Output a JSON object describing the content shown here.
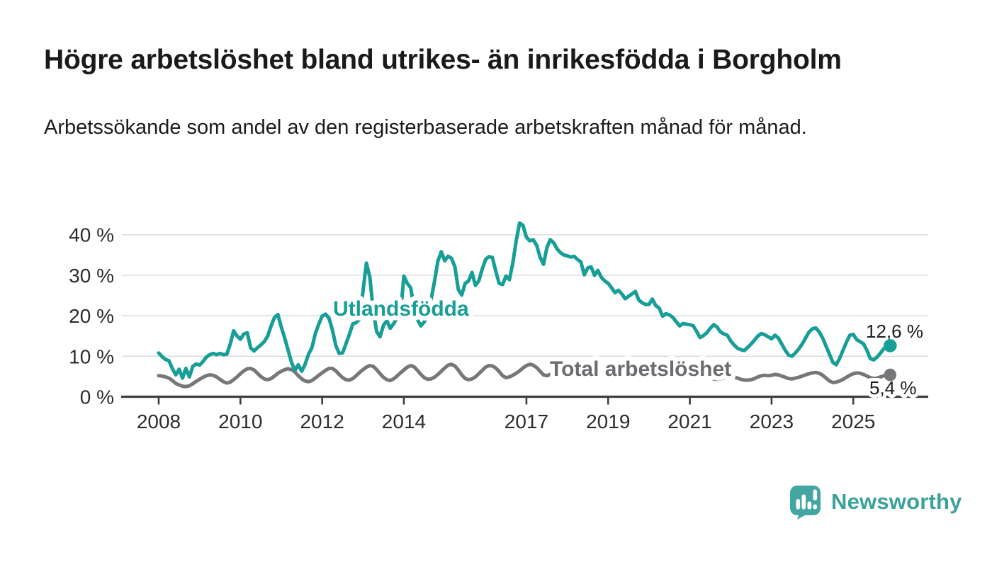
{
  "header": {
    "title": "Högre arbetslöshet bland utrikes- än inrikesfödda i Borgholm",
    "subtitle": "Arbetssökande som andel av den registerbaserade arbetskraften månad för månad."
  },
  "footer": {
    "brand": "Newsworthy"
  },
  "colors": {
    "foreign_born_line": "#169e97",
    "total_line": "#77777b",
    "total_label": "#6b6b70",
    "axis": "#3f3f3f",
    "grid": "#d9d9d9",
    "tick_text": "#2d2d2d",
    "end_label_text": "#1d1d1d",
    "brand_teal": "#3ba19b",
    "background": "#ffffff"
  },
  "chart_data": {
    "type": "line",
    "title": "Högre arbetslöshet bland utrikes- än inrikesfödda i Borgholm",
    "subtitle": "Arbetssökande som andel av den registerbaserade arbetskraften månad för månad.",
    "unit": "%",
    "x_start": "2008-01",
    "x_end": "2025-11",
    "x_tick_years": [
      2008,
      2010,
      2012,
      2014,
      2017,
      2019,
      2021,
      2023,
      2025
    ],
    "x_tick_labels": [
      "2008",
      "2010",
      "2012",
      "2014",
      "2017",
      "2019",
      "2021",
      "2023",
      "2025"
    ],
    "y_ticks": [
      {
        "value": 0,
        "label": "0 %"
      },
      {
        "value": 10,
        "label": "10 %"
      },
      {
        "value": 20,
        "label": "20 %"
      },
      {
        "value": 30,
        "label": "30 %"
      },
      {
        "value": 40,
        "label": "40 %"
      }
    ],
    "ylim": [
      0,
      44
    ],
    "grid": true,
    "legend_position": "inline-labels",
    "series": [
      {
        "name": "Utlandsfödda",
        "color": "#169e97",
        "end_label": "12,6 %",
        "end_value": 12.6,
        "values": [
          10.8,
          9.9,
          9.2,
          8.9,
          7.0,
          5.4,
          6.8,
          4.6,
          7.0,
          4.9,
          7.5,
          8.1,
          7.8,
          8.7,
          9.8,
          10.4,
          10.7,
          10.4,
          10.7,
          10.4,
          10.5,
          13.0,
          16.3,
          15.0,
          14.2,
          15.5,
          15.8,
          12.1,
          11.3,
          12.1,
          12.8,
          13.6,
          15.0,
          17.5,
          19.6,
          20.3,
          17.2,
          14.5,
          11.5,
          8.5,
          6.5,
          7.9,
          6.3,
          8.0,
          10.5,
          12.1,
          15.6,
          17.9,
          19.9,
          20.4,
          19.4,
          16.5,
          12.7,
          10.7,
          10.8,
          13.1,
          15.4,
          18.0,
          18.3,
          19.2,
          26.1,
          33.0,
          29.6,
          21.4,
          16.1,
          14.8,
          17.6,
          18.8,
          16.9,
          18.0,
          19.5,
          20.5,
          29.8,
          28.0,
          26.9,
          22.0,
          19.0,
          17.5,
          18.5,
          20.5,
          24.0,
          28.5,
          33.5,
          35.8,
          33.6,
          34.7,
          34.2,
          32.1,
          26.5,
          25.1,
          28.0,
          28.6,
          30.7,
          27.5,
          28.6,
          31.5,
          33.9,
          34.6,
          34.4,
          31.0,
          28.0,
          27.7,
          29.8,
          28.9,
          33.0,
          38.5,
          42.9,
          42.3,
          39.4,
          38.5,
          38.8,
          37.4,
          34.5,
          32.7,
          36.8,
          38.8,
          38.0,
          36.5,
          35.6,
          35.0,
          34.8,
          34.5,
          34.7,
          33.9,
          33.3,
          30.1,
          31.8,
          32.1,
          30.0,
          31.2,
          29.5,
          28.6,
          28.0,
          26.9,
          25.7,
          26.3,
          25.4,
          24.2,
          24.8,
          25.4,
          26.0,
          23.9,
          23.2,
          22.8,
          22.8,
          24.1,
          22.5,
          21.9,
          19.9,
          20.5,
          20.2,
          19.6,
          18.5,
          17.5,
          18.1,
          17.9,
          17.8,
          17.5,
          16.1,
          14.6,
          15.1,
          15.8,
          16.9,
          17.8,
          17.2,
          16.0,
          15.5,
          15.2,
          13.8,
          12.8,
          12.0,
          11.6,
          11.4,
          12.2,
          13.0,
          14.0,
          15.0,
          15.6,
          15.3,
          14.8,
          14.3,
          15.2,
          14.5,
          13.0,
          11.5,
          10.3,
          10.0,
          10.8,
          11.8,
          13.0,
          14.5,
          16.0,
          16.8,
          17.0,
          16.0,
          14.5,
          12.5,
          10.5,
          8.5,
          7.9,
          9.5,
          11.5,
          13.5,
          15.2,
          15.4,
          14.1,
          13.6,
          13.1,
          11.5,
          9.4,
          9.1,
          9.8,
          10.8,
          11.9,
          12.6
        ]
      },
      {
        "name": "Total arbetslöshet",
        "color": "#77777b",
        "end_label": "5,4 %",
        "end_value": 5.4,
        "values": [
          5.2,
          5.1,
          4.9,
          4.6,
          4.0,
          3.3,
          2.9,
          2.6,
          2.5,
          2.7,
          3.2,
          3.8,
          4.3,
          4.8,
          5.2,
          5.4,
          5.3,
          4.9,
          4.3,
          3.7,
          3.4,
          3.6,
          4.2,
          4.9,
          5.7,
          6.4,
          6.9,
          7.0,
          6.6,
          5.8,
          5.0,
          4.4,
          4.2,
          4.5,
          5.1,
          5.8,
          6.3,
          6.7,
          6.9,
          6.7,
          6.1,
          5.2,
          4.4,
          3.9,
          3.7,
          4.0,
          4.6,
          5.3,
          5.9,
          6.5,
          7.0,
          7.0,
          6.4,
          5.5,
          4.7,
          4.2,
          4.1,
          4.5,
          5.2,
          6.0,
          6.7,
          7.3,
          7.7,
          7.5,
          6.7,
          5.7,
          4.8,
          4.2,
          4.0,
          4.4,
          5.1,
          5.9,
          6.6,
          7.3,
          7.7,
          7.4,
          6.5,
          5.5,
          4.7,
          4.3,
          4.4,
          4.8,
          5.5,
          6.3,
          7.1,
          7.8,
          8.0,
          7.6,
          6.6,
          5.4,
          4.5,
          4.2,
          4.4,
          4.9,
          5.7,
          6.5,
          7.3,
          7.7,
          7.6,
          7.1,
          6.2,
          5.2,
          4.7,
          4.9,
          5.3,
          5.8,
          6.4,
          7.1,
          7.7,
          8.0,
          7.8,
          7.2,
          6.3,
          5.4,
          5.2,
          5.5,
          5.9,
          6.3,
          6.7,
          7.2,
          7.6,
          7.9,
          7.7,
          7.1,
          6.2,
          5.3,
          4.8,
          5.0,
          5.4,
          5.8,
          6.2,
          6.6,
          7.0,
          7.2,
          7.0,
          6.5,
          5.7,
          5.0,
          4.7,
          4.9,
          5.2,
          5.5,
          5.9,
          6.3,
          6.8,
          7.1,
          7.4,
          7.6,
          7.2,
          6.6,
          6.2,
          6.0,
          5.9,
          5.8,
          5.9,
          6.1,
          6.4,
          6.6,
          6.4,
          6.0,
          5.5,
          5.0,
          4.6,
          4.4,
          4.3,
          4.4,
          4.6,
          4.9,
          5.0,
          4.9,
          4.6,
          4.3,
          4.1,
          4.1,
          4.2,
          4.5,
          4.9,
          5.2,
          5.3,
          5.2,
          5.3,
          5.5,
          5.4,
          5.1,
          4.8,
          4.5,
          4.4,
          4.6,
          4.8,
          5.1,
          5.4,
          5.7,
          5.9,
          6.0,
          5.8,
          5.3,
          4.6,
          3.9,
          3.5,
          3.6,
          3.9,
          4.3,
          4.8,
          5.3,
          5.7,
          5.9,
          5.8,
          5.5,
          5.1,
          4.7,
          4.5,
          4.6,
          4.9,
          5.2,
          5.4
        ]
      }
    ]
  }
}
